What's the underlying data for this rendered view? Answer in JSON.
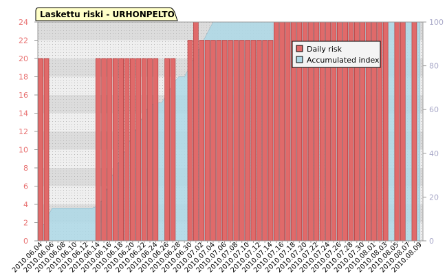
{
  "chart_data": {
    "type": "bar",
    "title": "Laskettu riski - URHONPELTO",
    "categories": [
      "2010.06.04",
      null,
      "2010.06.06",
      null,
      "2010.06.08",
      null,
      "2010.06.10",
      null,
      "2010.06.12",
      null,
      "2010.06.14",
      null,
      "2010.06.16",
      null,
      "2010.06.18",
      null,
      "2010.06.20",
      null,
      "2010.06.22",
      null,
      "2010.06.24",
      null,
      "2010.06.26",
      null,
      "2010.06.28",
      null,
      "2010.06.30",
      null,
      "2010.07.02",
      null,
      "2010.07.04",
      null,
      "2010.07.06",
      null,
      "2010.07.08",
      null,
      "2010.07.10",
      null,
      "2010.07.12",
      null,
      "2010.07.14",
      null,
      "2010.07.16",
      null,
      "2010.07.18",
      null,
      "2010.07.20",
      null,
      "2010.07.22",
      null,
      "2010.07.24",
      null,
      "2010.07.26",
      null,
      "2010.07.28",
      null,
      "2010.07.30",
      null,
      "2010.08.01",
      null,
      "2010.08.03",
      null,
      "2010.08.05",
      null,
      "2010.08.07",
      null,
      "2010.08.09"
    ],
    "series": [
      {
        "name": "Daily risk",
        "color": "#e06a6a",
        "values": [
          20,
          20,
          0,
          0,
          0,
          0,
          0,
          0,
          0,
          0,
          20,
          20,
          20,
          20,
          20,
          20,
          20,
          20,
          20,
          20,
          20,
          0,
          20,
          20,
          0,
          0,
          22,
          24,
          22,
          22,
          22,
          22,
          22,
          22,
          22,
          22,
          22,
          22,
          22,
          22,
          22,
          24,
          24,
          24,
          24,
          24,
          24,
          24,
          24,
          24,
          24,
          24,
          24,
          24,
          24,
          24,
          24,
          24,
          24,
          24,
          24,
          0,
          24,
          24,
          0,
          24,
          0
        ]
      },
      {
        "name": "Accumulated index",
        "type": "area",
        "axis": "y2",
        "color": "#add8e6",
        "values": [
          5,
          10,
          15,
          15,
          15,
          15,
          15,
          15,
          15,
          15,
          16,
          20,
          27,
          33,
          38,
          43,
          48,
          53,
          58,
          62,
          63,
          63,
          67,
          72,
          75,
          75,
          80,
          85,
          90,
          95,
          100,
          100,
          100,
          100,
          100,
          100,
          100,
          100,
          100,
          100,
          100,
          100,
          100,
          100,
          100,
          100,
          100,
          100,
          100,
          100,
          100,
          100,
          100,
          100,
          100,
          100,
          100,
          100,
          100,
          100,
          100,
          100,
          100,
          100,
          100,
          100,
          100
        ]
      }
    ],
    "ylim": [
      0,
      24
    ],
    "yticks": [
      0,
      2,
      4,
      6,
      8,
      10,
      12,
      14,
      16,
      18,
      20,
      22,
      24
    ],
    "y2lim": [
      0,
      100
    ],
    "y2ticks": [
      0,
      20,
      40,
      60,
      80,
      100
    ],
    "legend": "upper right"
  }
}
